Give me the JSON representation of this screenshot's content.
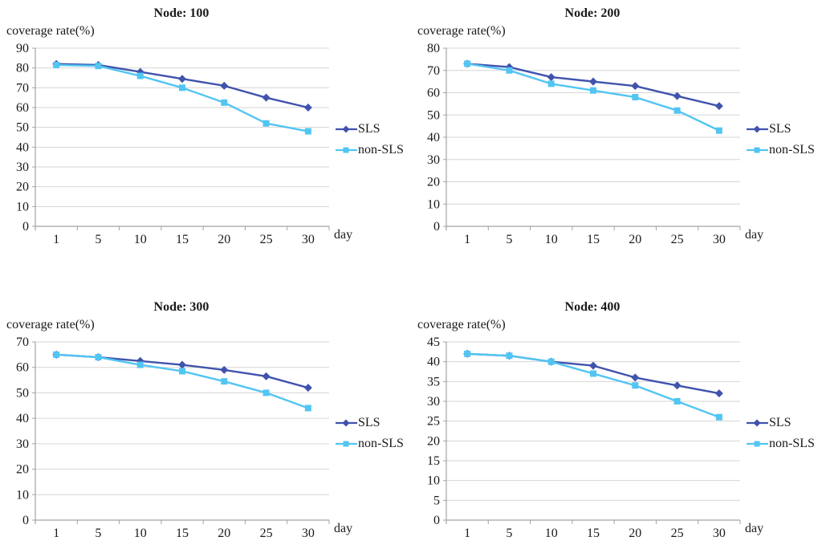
{
  "page": {
    "background": "#ffffff",
    "text_color": "#1a1a1a",
    "gridline_color": "#d6d6d6",
    "axis_color": "#a3a3a3"
  },
  "chart_data": [
    {
      "type": "line",
      "title": "Node: 100",
      "ylabel": "coverage rate(%)",
      "xlabel": "day",
      "categories": [
        1,
        5,
        10,
        15,
        20,
        25,
        30
      ],
      "ylim": [
        0,
        90
      ],
      "ytick_step": 10,
      "grid": true,
      "legend_position": "right",
      "series": [
        {
          "name": "SLS",
          "marker": "diamond",
          "color": "#4053ad",
          "values": [
            82,
            81.5,
            78,
            74.5,
            71,
            65,
            60
          ]
        },
        {
          "name": "non-SLS",
          "marker": "square",
          "color": "#52c5f2",
          "values": [
            81.5,
            81,
            76,
            70,
            62.5,
            52,
            48
          ]
        }
      ]
    },
    {
      "type": "line",
      "title": "Node: 200",
      "ylabel": "coverage rate(%)",
      "xlabel": "day",
      "categories": [
        1,
        5,
        10,
        15,
        20,
        25,
        30
      ],
      "ylim": [
        0,
        80
      ],
      "ytick_step": 10,
      "grid": true,
      "legend_position": "right",
      "series": [
        {
          "name": "SLS",
          "marker": "diamond",
          "color": "#4053ad",
          "values": [
            73,
            71.5,
            67,
            65,
            63,
            58.5,
            54
          ]
        },
        {
          "name": "non-SLS",
          "marker": "square",
          "color": "#52c5f2",
          "values": [
            73,
            70,
            64,
            61,
            58,
            52,
            43
          ]
        }
      ]
    },
    {
      "type": "line",
      "title": "Node: 300",
      "ylabel": "coverage rate(%)",
      "xlabel": "day",
      "categories": [
        1,
        5,
        10,
        15,
        20,
        25,
        30
      ],
      "ylim": [
        0,
        70
      ],
      "ytick_step": 10,
      "grid": true,
      "legend_position": "right",
      "series": [
        {
          "name": "SLS",
          "marker": "diamond",
          "color": "#4053ad",
          "values": [
            65,
            64,
            62.5,
            61,
            59,
            56.5,
            52
          ]
        },
        {
          "name": "non-SLS",
          "marker": "square",
          "color": "#52c5f2",
          "values": [
            65,
            64,
            61,
            58.5,
            54.5,
            50,
            44
          ]
        }
      ]
    },
    {
      "type": "line",
      "title": "Node: 400",
      "ylabel": "coverage rate(%)",
      "xlabel": "day",
      "categories": [
        1,
        5,
        10,
        15,
        20,
        25,
        30
      ],
      "ylim": [
        0,
        45
      ],
      "ytick_step": 5,
      "grid": true,
      "legend_position": "right",
      "series": [
        {
          "name": "SLS",
          "marker": "diamond",
          "color": "#4053ad",
          "values": [
            42,
            41.5,
            40,
            39,
            36,
            34,
            32
          ]
        },
        {
          "name": "non-SLS",
          "marker": "square",
          "color": "#52c5f2",
          "values": [
            42,
            41.5,
            40,
            37,
            34,
            30,
            26
          ]
        }
      ]
    }
  ]
}
